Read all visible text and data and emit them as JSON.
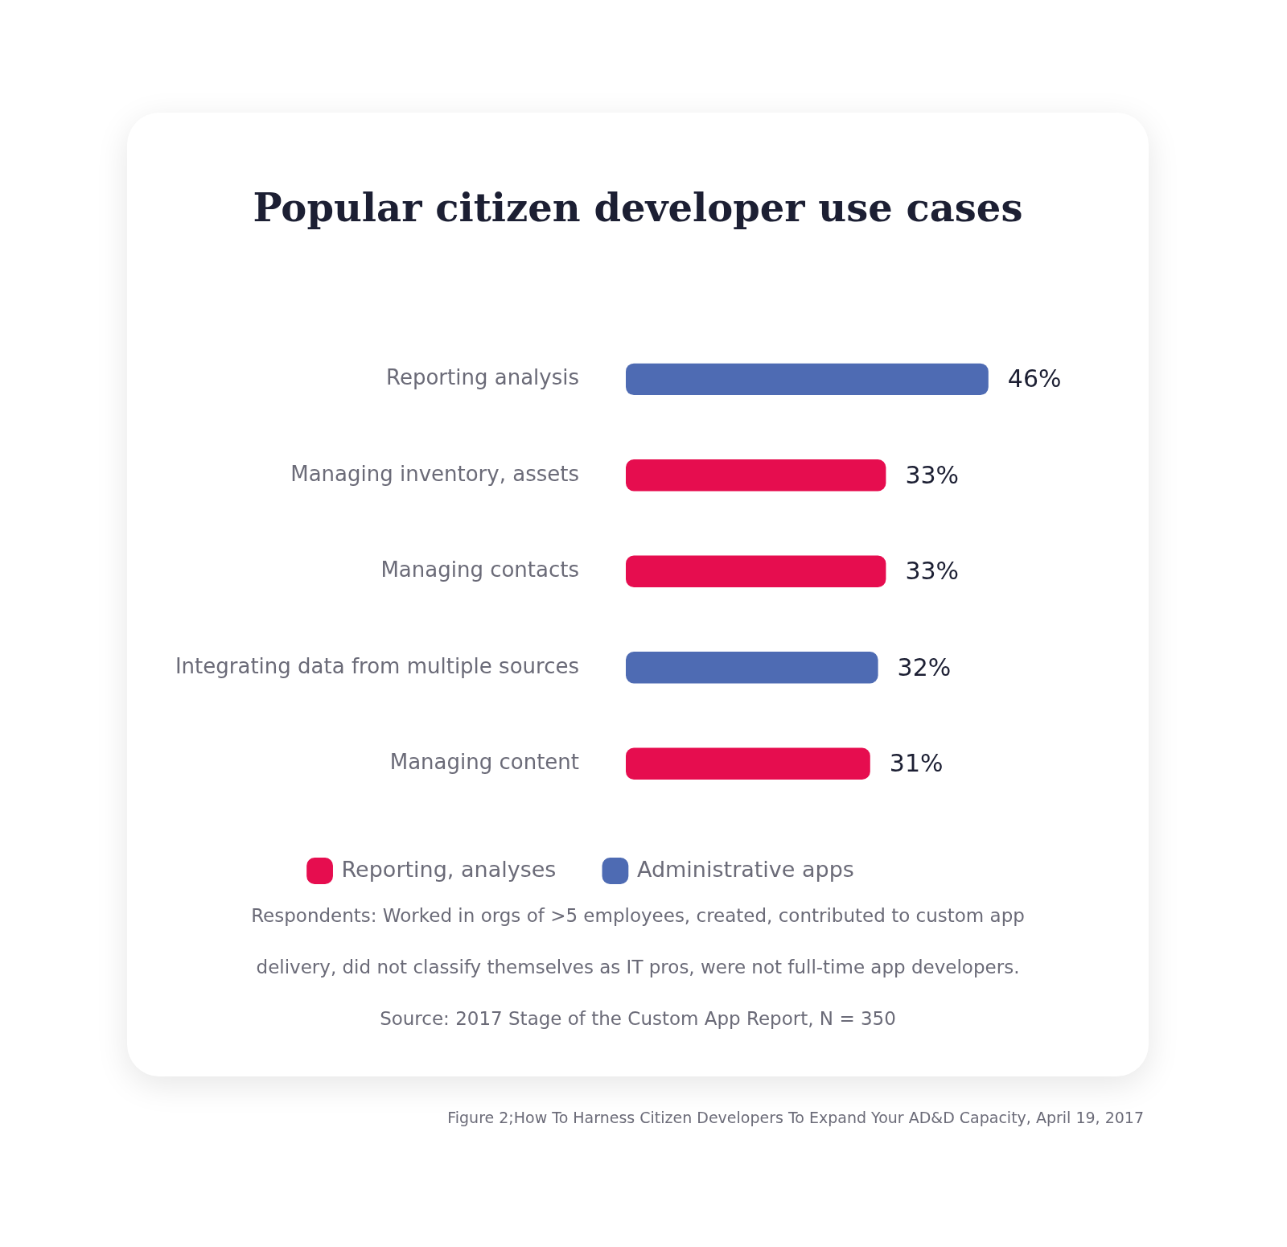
{
  "chart_data": {
    "type": "bar",
    "orientation": "horizontal",
    "stacked": true,
    "title": "Popular citizen developer use cases",
    "categories": [
      "Reporting analysis",
      "Managing inventory, assets",
      "Managing contacts",
      "Integrating data from multiple sources",
      "Managing content"
    ],
    "series": [
      {
        "name": "Reporting, analyses",
        "color": "#e60d4f",
        "values": [
          null,
          33,
          33,
          null,
          31
        ],
        "value_labels": [
          null,
          "33%",
          "33%",
          null,
          "31%"
        ]
      },
      {
        "name": "Administrative apps",
        "color": "#4e6bb3",
        "values": [
          46,
          null,
          null,
          32,
          null
        ],
        "value_labels": [
          "46%",
          null,
          null,
          "32%",
          null
        ]
      }
    ],
    "legend": "bottom",
    "annotations": [
      "Respondents: Worked in orgs of >5 employees, created, contributed to custom app delivery, did not classify themselves as IT pros, were not full-time app developers.",
      "Source: 2017 Stage of the Custom App Report, N = 350",
      "Figure 2;How To Harness Citizen Developers To Expand Your AD&D Capacity, April 19, 2017"
    ]
  }
}
